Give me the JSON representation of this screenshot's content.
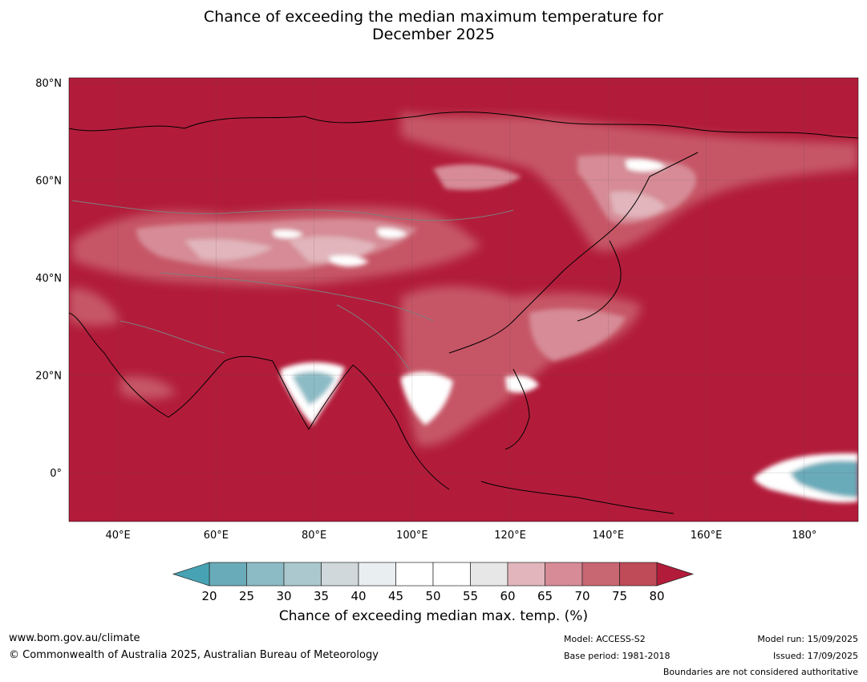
{
  "title": {
    "line1": "Chance of exceeding the median maximum temperature for",
    "line2": "December 2025"
  },
  "map": {
    "lat_labels": [
      "80°N",
      "60°N",
      "40°N",
      "20°N",
      "0°"
    ],
    "lon_labels": [
      "40°E",
      "60°E",
      "80°E",
      "100°E",
      "120°E",
      "140°E",
      "160°E",
      "180°"
    ],
    "extent": {
      "lon_min": 30,
      "lon_max": 191,
      "lat_min": -10,
      "lat_max": 81
    },
    "dominant_color": "#b21c3a"
  },
  "colorbar": {
    "ticks": [
      "20",
      "25",
      "30",
      "35",
      "40",
      "45",
      "50",
      "55",
      "60",
      "65",
      "70",
      "75",
      "80"
    ],
    "colors": [
      "#6aabb9",
      "#8cbbc6",
      "#aac8cd",
      "#d0d8dc",
      "#e9eef0",
      "#ffffff",
      "#ffffff",
      "#e7e7e7",
      "#e1b5bb",
      "#d68b96",
      "#c86672",
      "#bf4a58"
    ],
    "low_extend_color": "#47a3b3",
    "high_extend_color": "#b21c3a",
    "label": "Chance of exceeding median max. temp. (%)"
  },
  "footer": {
    "website": "www.bom.gov.au/climate",
    "copyright": "© Commonwealth of Australia 2025, Australian Bureau of Meteorology",
    "model": "Model: ACCESS-S2",
    "base_period": "Base period: 1981-2018",
    "model_run": "Model run: 15/09/2025",
    "issued": "Issued: 17/09/2025",
    "disclaimer": "Boundaries are not considered authoritative"
  }
}
